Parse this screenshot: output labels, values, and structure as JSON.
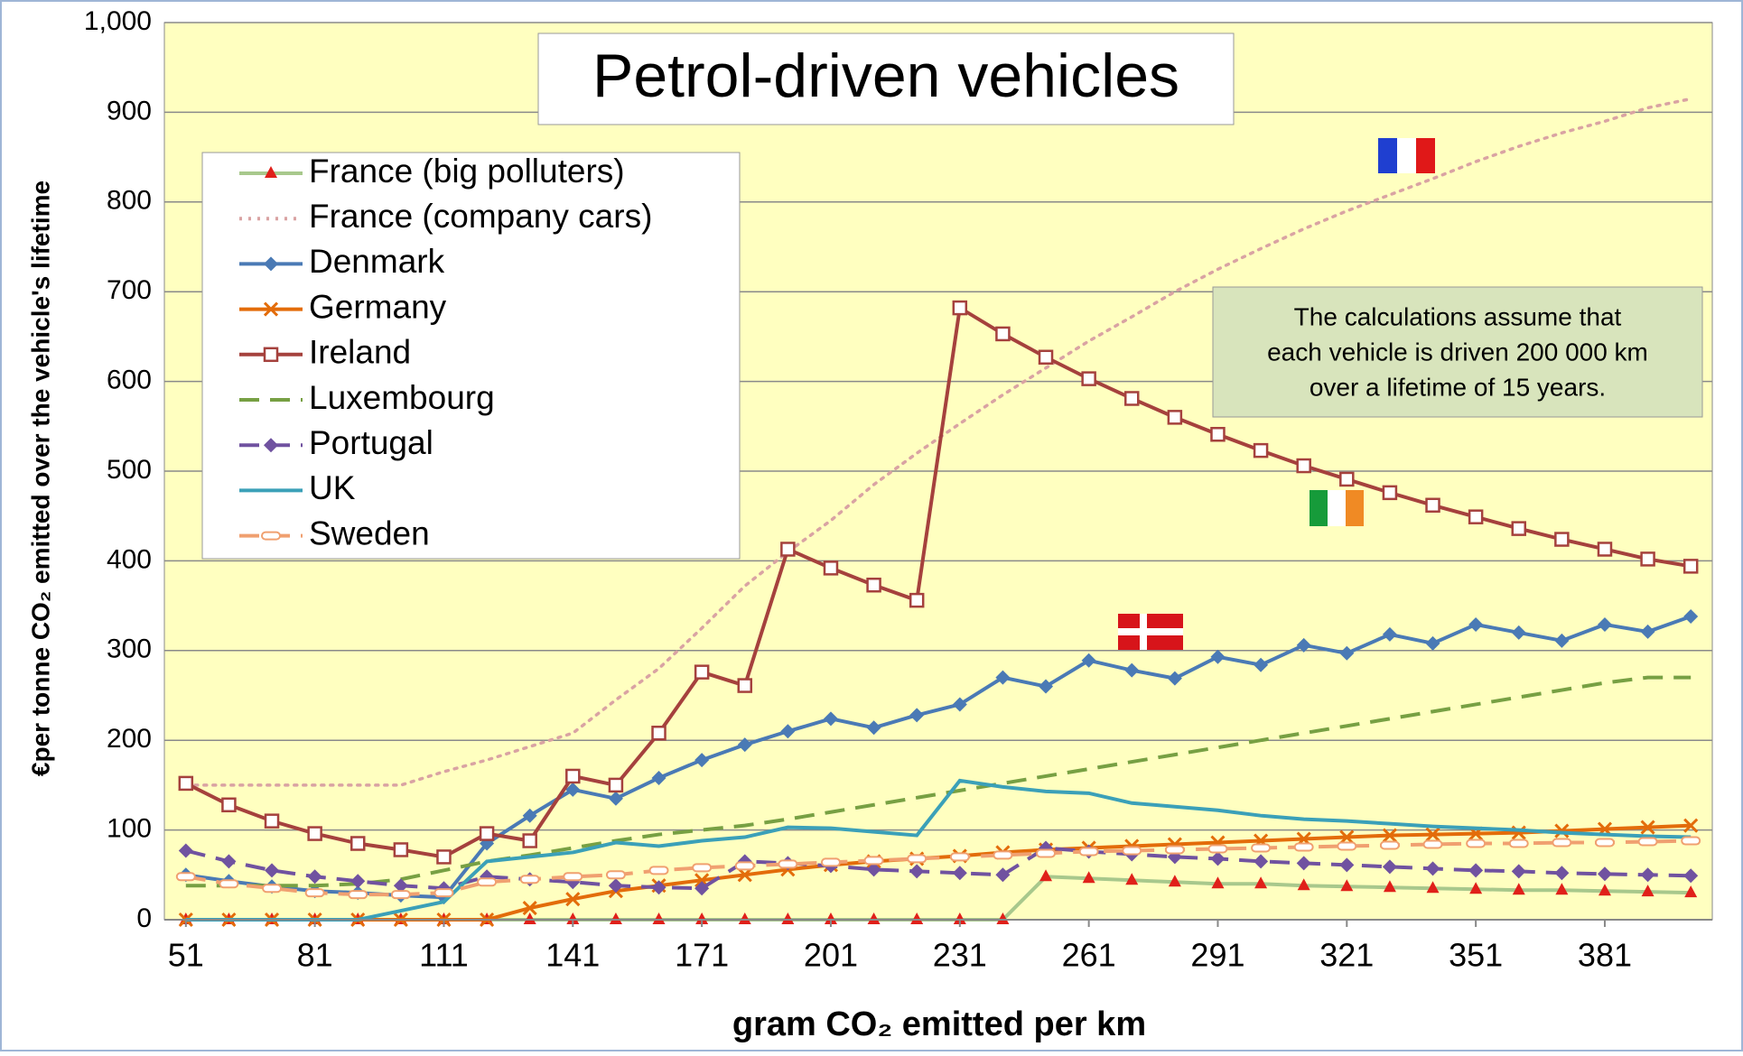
{
  "chart_data": {
    "type": "line",
    "title": "Petrol-driven vehicles",
    "xlabel": "gram CO₂ emitted per km",
    "ylabel": "€per tonne CO₂ emitted over the vehicle's lifetime",
    "annotation": [
      "The calculations assume that",
      "each vehicle is driven 200 000 km",
      "over a lifetime of 15 years."
    ],
    "x": [
      51,
      61,
      71,
      81,
      91,
      101,
      111,
      121,
      131,
      141,
      151,
      161,
      171,
      181,
      191,
      201,
      211,
      221,
      231,
      241,
      251,
      261,
      271,
      281,
      291,
      301,
      311,
      321,
      331,
      341,
      351,
      361,
      371,
      381,
      391,
      401
    ],
    "xlim": [
      46,
      406
    ],
    "xticks": [
      51,
      81,
      111,
      141,
      171,
      201,
      231,
      261,
      291,
      321,
      351,
      381
    ],
    "ylim": [
      0,
      1000
    ],
    "yticks": [
      0,
      100,
      200,
      300,
      400,
      500,
      600,
      700,
      800,
      900,
      {
        "value": 1000,
        "label": "1,000"
      }
    ],
    "grid": true,
    "legend": "upper left",
    "series": [
      {
        "name": "France (big polluters)",
        "color": "#a8c88c",
        "marker": "triangle",
        "marker_color": "#e0201a",
        "dash": "solid",
        "values": [
          0,
          0,
          0,
          0,
          0,
          0,
          0,
          0,
          0,
          0,
          0,
          0,
          0,
          0,
          0,
          0,
          0,
          0,
          0,
          0,
          48,
          46,
          44,
          42,
          40,
          40,
          38,
          37,
          36,
          35,
          34,
          33,
          33,
          32,
          31,
          30
        ]
      },
      {
        "name": "France (company cars)",
        "color": "#d9a3a3",
        "marker": "none",
        "dash": "dot",
        "values": [
          150,
          150,
          150,
          150,
          150,
          150,
          165,
          178,
          193,
          208,
          245,
          280,
          325,
          372,
          410,
          445,
          485,
          520,
          553,
          585,
          615,
          645,
          672,
          700,
          725,
          748,
          770,
          790,
          808,
          826,
          845,
          862,
          877,
          890,
          905,
          915
        ]
      },
      {
        "name": "Denmark",
        "color": "#4a7ab5",
        "marker": "diamond",
        "marker_color": "#4a7ab5",
        "dash": "solid",
        "values": [
          50,
          43,
          37,
          32,
          30,
          27,
          25,
          85,
          116,
          145,
          135,
          158,
          178,
          195,
          210,
          224,
          214,
          228,
          240,
          270,
          260,
          289,
          278,
          269,
          293,
          284,
          306,
          297,
          318,
          308,
          329,
          320,
          311,
          329,
          321,
          338
        ]
      },
      {
        "name": "Germany",
        "color": "#e36c0a",
        "marker": "x",
        "marker_color": "#e36c0a",
        "dash": "solid",
        "values": [
          0,
          0,
          0,
          0,
          0,
          0,
          0,
          0,
          13,
          23,
          32,
          38,
          44,
          50,
          56,
          61,
          65,
          68,
          71,
          75,
          78,
          80,
          82,
          84,
          86,
          88,
          90,
          92,
          94,
          95,
          96,
          97,
          99,
          101,
          103,
          105
        ]
      },
      {
        "name": "Ireland",
        "color": "#a5413d",
        "marker": "square",
        "marker_color": "#a5413d",
        "dash": "solid",
        "values": [
          152,
          128,
          110,
          96,
          85,
          78,
          70,
          96,
          88,
          160,
          150,
          208,
          276,
          261,
          413,
          392,
          373,
          356,
          682,
          653,
          627,
          603,
          581,
          560,
          541,
          523,
          506,
          491,
          476,
          462,
          449,
          436,
          424,
          413,
          402,
          394
        ]
      },
      {
        "name": "Luxembourg",
        "color": "#77a043",
        "marker": "none",
        "dash": "dash",
        "values": [
          38,
          38,
          38,
          38,
          40,
          45,
          55,
          65,
          72,
          80,
          88,
          95,
          100,
          105,
          112,
          120,
          128,
          136,
          144,
          152,
          160,
          168,
          176,
          184,
          192,
          200,
          208,
          216,
          224,
          232,
          240,
          248,
          256,
          264,
          270,
          270
        ]
      },
      {
        "name": "Portugal",
        "color": "#7052a0",
        "marker": "diamond",
        "marker_color": "#7052a0",
        "dash": "dash",
        "values": [
          77,
          65,
          55,
          48,
          43,
          38,
          35,
          48,
          45,
          42,
          38,
          36,
          35,
          65,
          63,
          60,
          56,
          54,
          52,
          50,
          80,
          76,
          73,
          70,
          68,
          65,
          63,
          61,
          59,
          57,
          55,
          54,
          52,
          51,
          50,
          49
        ]
      },
      {
        "name": "UK",
        "color": "#3ba0b8",
        "marker": "none",
        "dash": "solid",
        "values": [
          0,
          0,
          0,
          0,
          0,
          10,
          20,
          65,
          70,
          75,
          86,
          82,
          88,
          92,
          103,
          102,
          98,
          94,
          155,
          148,
          143,
          141,
          130,
          126,
          122,
          116,
          112,
          110,
          107,
          104,
          102,
          100,
          97,
          95,
          93,
          92
        ]
      },
      {
        "name": "Sweden",
        "color": "#f0a070",
        "marker": "pill",
        "marker_color": "#f0a070",
        "dash": "dash",
        "values": [
          48,
          40,
          35,
          30,
          28,
          28,
          30,
          42,
          45,
          48,
          50,
          55,
          58,
          60,
          62,
          64,
          66,
          68,
          70,
          72,
          74,
          76,
          77,
          78,
          79,
          80,
          81,
          82,
          83,
          84,
          85,
          85,
          86,
          86,
          87,
          88
        ]
      }
    ]
  }
}
